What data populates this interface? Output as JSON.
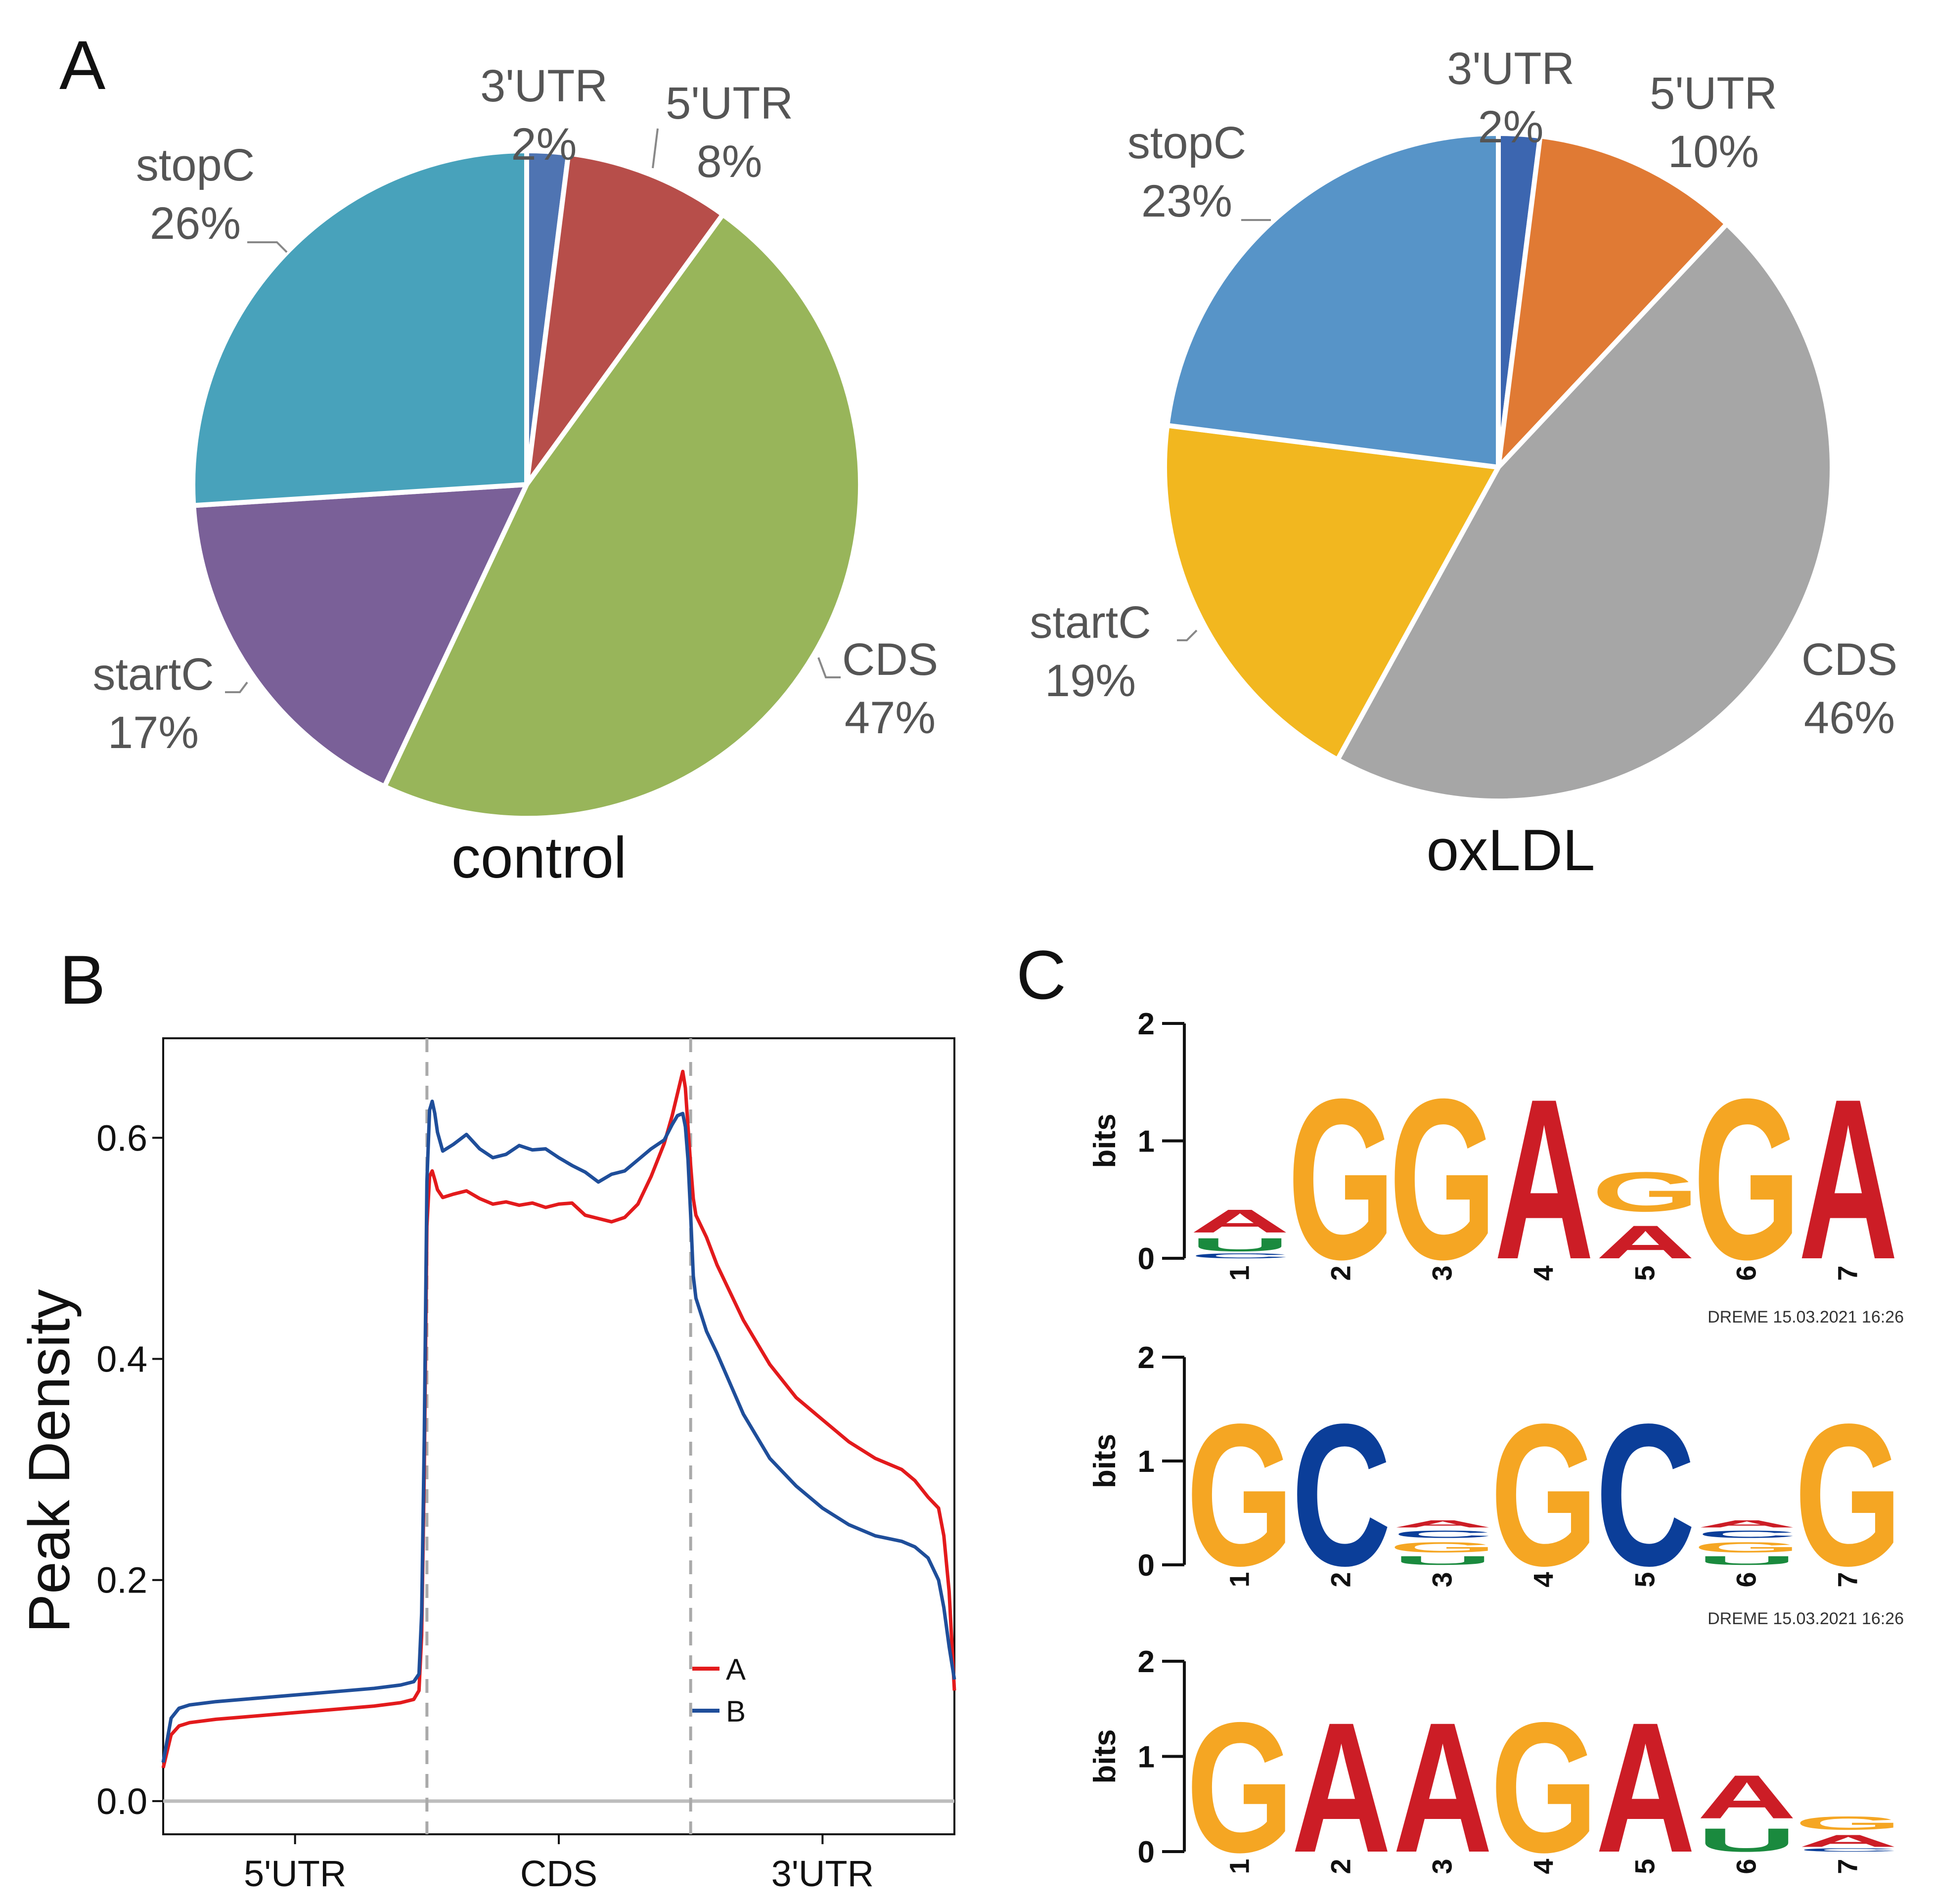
{
  "panels": {
    "a": "A",
    "b": "B",
    "c": "C"
  },
  "chart_data": [
    {
      "type": "pie",
      "title": "control",
      "slices": [
        {
          "name": "3'UTR",
          "label": "2%",
          "value": 2,
          "color": "#4f74b2"
        },
        {
          "name": "5'UTR",
          "label": "8%",
          "value": 8,
          "color": "#b74e4a"
        },
        {
          "name": "CDS",
          "label": "47%",
          "value": 47,
          "color": "#98b55a"
        },
        {
          "name": "startC",
          "label": "17%",
          "value": 17,
          "color": "#7a6098"
        },
        {
          "name": "stopC",
          "label": "26%",
          "value": 26,
          "color": "#48a2bb"
        }
      ]
    },
    {
      "type": "pie",
      "title": "oxLDL",
      "slices": [
        {
          "name": "3'UTR",
          "label": "2%",
          "value": 2,
          "color": "#3c66b0"
        },
        {
          "name": "5'UTR",
          "label": "10%",
          "value": 10,
          "color": "#e07a34"
        },
        {
          "name": "CDS",
          "label": "46%",
          "value": 46,
          "color": "#a6a6a6"
        },
        {
          "name": "startC",
          "label": "19%",
          "value": 19,
          "color": "#f2b71f"
        },
        {
          "name": "stopC",
          "label": "23%",
          "value": 23,
          "color": "#5794c8"
        }
      ]
    },
    {
      "type": "line",
      "ylabel": "Peak Density",
      "xlabel": "",
      "xlim": [
        0,
        3
      ],
      "ylim": [
        -0.03,
        0.69
      ],
      "yticks": [
        0.0,
        0.2,
        0.4,
        0.6
      ],
      "ytick_labels": [
        "0.0",
        "0.2",
        "0.4",
        "0.6"
      ],
      "region_labels": [
        "5'UTR",
        "CDS",
        "3'UTR"
      ],
      "region_positions": [
        0.5,
        1.5,
        2.5
      ],
      "boundaries": [
        1,
        2
      ],
      "series": [
        {
          "name": "A",
          "color": "#e31a1c",
          "x": [
            0,
            0.03,
            0.06,
            0.1,
            0.2,
            0.3,
            0.4,
            0.5,
            0.6,
            0.7,
            0.8,
            0.9,
            0.95,
            0.97,
            0.98,
            0.99,
            1.0,
            1.01,
            1.02,
            1.03,
            1.04,
            1.06,
            1.1,
            1.15,
            1.2,
            1.25,
            1.3,
            1.35,
            1.4,
            1.45,
            1.5,
            1.55,
            1.6,
            1.65,
            1.7,
            1.75,
            1.8,
            1.85,
            1.9,
            1.93,
            1.95,
            1.97,
            1.98,
            1.99,
            2.0,
            2.01,
            2.02,
            2.04,
            2.06,
            2.1,
            2.2,
            2.3,
            2.4,
            2.5,
            2.6,
            2.7,
            2.8,
            2.85,
            2.9,
            2.94,
            2.96,
            2.98,
            3.0
          ],
          "y": [
            0.03,
            0.06,
            0.068,
            0.071,
            0.074,
            0.076,
            0.078,
            0.08,
            0.082,
            0.084,
            0.086,
            0.089,
            0.092,
            0.1,
            0.15,
            0.3,
            0.52,
            0.565,
            0.57,
            0.562,
            0.553,
            0.546,
            0.549,
            0.552,
            0.545,
            0.54,
            0.542,
            0.539,
            0.541,
            0.537,
            0.54,
            0.541,
            0.53,
            0.527,
            0.524,
            0.528,
            0.54,
            0.565,
            0.595,
            0.62,
            0.64,
            0.66,
            0.645,
            0.61,
            0.575,
            0.545,
            0.53,
            0.52,
            0.51,
            0.485,
            0.435,
            0.395,
            0.365,
            0.345,
            0.325,
            0.31,
            0.3,
            0.29,
            0.275,
            0.265,
            0.24,
            0.19,
            0.1
          ]
        },
        {
          "name": "B",
          "color": "#1f4e9a",
          "x": [
            0,
            0.03,
            0.06,
            0.1,
            0.2,
            0.3,
            0.4,
            0.5,
            0.6,
            0.7,
            0.8,
            0.9,
            0.95,
            0.97,
            0.98,
            0.99,
            1.0,
            1.01,
            1.02,
            1.03,
            1.04,
            1.06,
            1.1,
            1.15,
            1.2,
            1.25,
            1.3,
            1.35,
            1.4,
            1.45,
            1.5,
            1.55,
            1.6,
            1.65,
            1.7,
            1.75,
            1.8,
            1.85,
            1.9,
            1.93,
            1.95,
            1.97,
            1.98,
            1.99,
            2.0,
            2.01,
            2.02,
            2.04,
            2.06,
            2.1,
            2.2,
            2.3,
            2.4,
            2.5,
            2.6,
            2.7,
            2.8,
            2.85,
            2.9,
            2.94,
            2.96,
            2.98,
            3.0
          ],
          "y": [
            0.035,
            0.075,
            0.084,
            0.087,
            0.09,
            0.092,
            0.094,
            0.096,
            0.098,
            0.1,
            0.102,
            0.105,
            0.108,
            0.115,
            0.17,
            0.33,
            0.56,
            0.625,
            0.633,
            0.622,
            0.605,
            0.588,
            0.594,
            0.603,
            0.59,
            0.582,
            0.585,
            0.593,
            0.589,
            0.59,
            0.582,
            0.575,
            0.569,
            0.56,
            0.567,
            0.57,
            0.58,
            0.59,
            0.598,
            0.612,
            0.62,
            0.622,
            0.61,
            0.58,
            0.53,
            0.475,
            0.455,
            0.44,
            0.425,
            0.405,
            0.35,
            0.31,
            0.285,
            0.265,
            0.25,
            0.24,
            0.235,
            0.23,
            0.22,
            0.2,
            0.175,
            0.14,
            0.11
          ]
        }
      ]
    },
    {
      "type": "sequence-logo",
      "ylabel": "bits",
      "yticks": [
        0,
        1,
        2
      ],
      "positions": [
        "1",
        "2",
        "3",
        "4",
        "5",
        "6",
        "7"
      ],
      "stamp": "DREME 15.03.2021 16:26",
      "columns": [
        [
          {
            "letter": "C",
            "bits": 0.06
          },
          {
            "letter": "U",
            "bits": 0.16
          },
          {
            "letter": "A",
            "bits": 0.28
          }
        ],
        [
          {
            "letter": "G",
            "bits": 1.95
          }
        ],
        [
          {
            "letter": "G",
            "bits": 1.95
          }
        ],
        [
          {
            "letter": "A",
            "bits": 1.95
          }
        ],
        [
          {
            "letter": "A",
            "bits": 0.4
          },
          {
            "letter": "G",
            "bits": 0.48
          }
        ],
        [
          {
            "letter": "G",
            "bits": 1.95
          }
        ],
        [
          {
            "letter": "A",
            "bits": 1.95
          }
        ]
      ]
    },
    {
      "type": "sequence-logo",
      "ylabel": "bits",
      "yticks": [
        0,
        1,
        2
      ],
      "positions": [
        "1",
        "2",
        "3",
        "4",
        "5",
        "6",
        "7"
      ],
      "stamp": "DREME 15.03.2021 16:26",
      "columns": [
        [
          {
            "letter": "G",
            "bits": 1.95
          }
        ],
        [
          {
            "letter": "C",
            "bits": 1.95
          }
        ],
        [
          {
            "letter": "U",
            "bits": 0.12
          },
          {
            "letter": "G",
            "bits": 0.14
          },
          {
            "letter": "C",
            "bits": 0.1
          },
          {
            "letter": "A",
            "bits": 0.1
          }
        ],
        [
          {
            "letter": "G",
            "bits": 1.95
          }
        ],
        [
          {
            "letter": "C",
            "bits": 1.95
          }
        ],
        [
          {
            "letter": "U",
            "bits": 0.12
          },
          {
            "letter": "G",
            "bits": 0.14
          },
          {
            "letter": "C",
            "bits": 0.1
          },
          {
            "letter": "A",
            "bits": 0.1
          }
        ],
        [
          {
            "letter": "G",
            "bits": 1.95
          }
        ]
      ]
    },
    {
      "type": "sequence-logo",
      "ylabel": "bits",
      "yticks": [
        0,
        1,
        2
      ],
      "positions": [
        "1",
        "2",
        "3",
        "4",
        "5",
        "6",
        "7"
      ],
      "stamp": "",
      "columns": [
        [
          {
            "letter": "G",
            "bits": 1.95
          }
        ],
        [
          {
            "letter": "A",
            "bits": 1.95
          }
        ],
        [
          {
            "letter": "A",
            "bits": 1.95
          }
        ],
        [
          {
            "letter": "G",
            "bits": 1.95
          }
        ],
        [
          {
            "letter": "A",
            "bits": 1.95
          }
        ],
        [
          {
            "letter": "U",
            "bits": 0.35
          },
          {
            "letter": "A",
            "bits": 0.65
          }
        ],
        [
          {
            "letter": "C",
            "bits": 0.05
          },
          {
            "letter": "A",
            "bits": 0.18
          },
          {
            "letter": "G",
            "bits": 0.2
          }
        ]
      ]
    }
  ],
  "logo_colors": {
    "A": "#cc1d26",
    "C": "#0b3e99",
    "G": "#f5a623",
    "U": "#1a8a3e"
  }
}
